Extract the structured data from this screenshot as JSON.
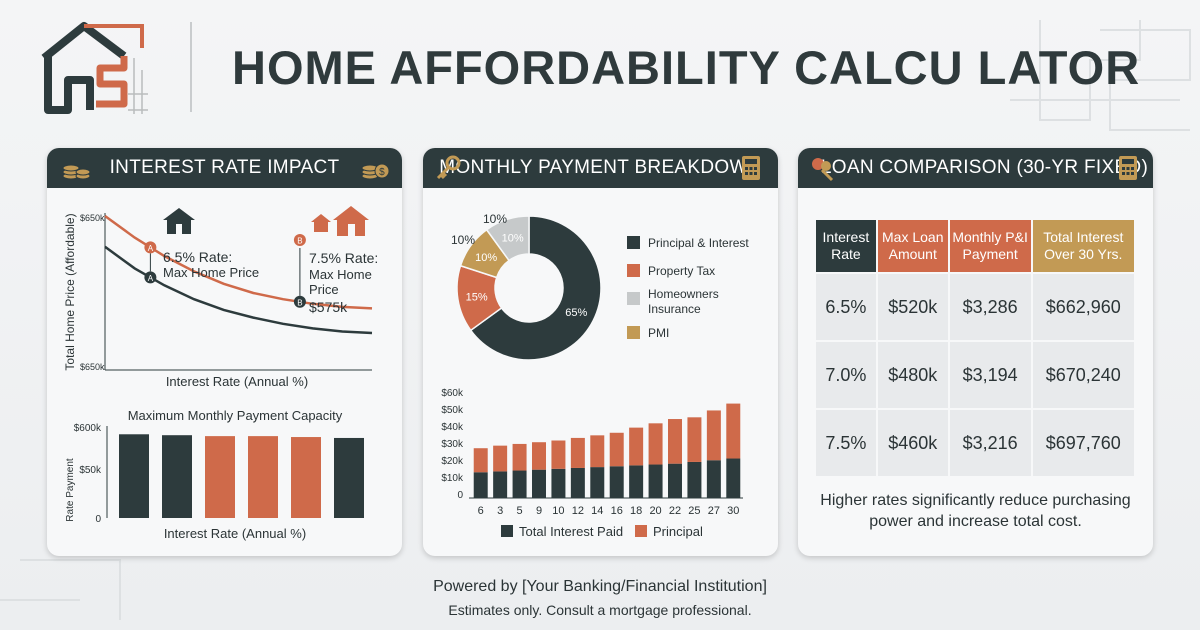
{
  "header": {
    "title": "HOME AFFORDABILITY CALCU LATOR"
  },
  "colors": {
    "dark": "#2d3b3d",
    "orange": "#cf6a4a",
    "gray": "#bfc2c3",
    "gold": "#c29a55",
    "bar_gray": "#c6c9ca"
  },
  "icons": {
    "logo": "hs-house-logo",
    "coins": "coins-icon",
    "coins_dollar": "coins-dollar-icon",
    "key": "key-icon",
    "calculator": "calculator-icon",
    "keys": "keys-icon",
    "house": "house-icon"
  },
  "card_rate": {
    "title": "INTEREST RATE IMPACT",
    "ylabel": "Total Home Price (Affordable)",
    "ytick_top": "$650k",
    "ytick_bottom": "$650k",
    "xlabel": "Interest Rate (Annual %)",
    "marker_a": "A",
    "marker_b": "B",
    "annot_a": [
      "6.5% Rate:",
      "Max Home Price"
    ],
    "annot_b": [
      "7.5% Rate:",
      "Max Home",
      "Price",
      "$575k"
    ],
    "bar_title": "Maximum Monthly Payment Capacity",
    "bar_ylabel": "Rate Payment",
    "bar_ticks": [
      "$600k",
      "$50k",
      "0"
    ],
    "bar_xlabel": "Interest Rate (Annual %)"
  },
  "card_payment": {
    "title": "MONTHLY PAYMENT BREAKDOWN",
    "legend": [
      "Principal & Interest",
      "Property Tax",
      "Homeowners Insurance",
      "PMI"
    ],
    "outer_labels": [
      "10%",
      "10%"
    ],
    "bar_ticks": [
      "$60k",
      "$50k",
      "$40k",
      "$30k",
      "$20k",
      "$10k",
      "0"
    ],
    "bar_legend": [
      "Total Interest Paid",
      "Principal"
    ]
  },
  "card_loan": {
    "title": "LOAN COMPARISON (30-YR FIXED)",
    "columns": [
      {
        "label": "Interest Rate",
        "color": "#2d3b3d"
      },
      {
        "label": "Max Loan Amount",
        "color": "#cf6a4a"
      },
      {
        "label": "Monthly P&I Payment",
        "color": "#cf6a4a"
      },
      {
        "label": "Total Interest Over 30 Yrs.",
        "color": "#c29a55"
      }
    ],
    "rows": [
      [
        "6.5%",
        "$520k",
        "$3,286",
        "$662,960"
      ],
      [
        "7.0%",
        "$480k",
        "$3,194",
        "$670,240"
      ],
      [
        "7.5%",
        "$460k",
        "$3,216",
        "$697,760"
      ]
    ],
    "note": "Higher rates significantly reduce purchasing power and increase total cost."
  },
  "footer": {
    "powered": "Powered by [Your Banking/Financial Institution]",
    "disclaimer": "Estimates only. Consult a mortgage professional."
  },
  "chart_data": [
    {
      "type": "line",
      "title": "",
      "xlabel": "Interest Rate (Annual %)",
      "ylabel": "Total Home Price (Affordable)",
      "series": [
        {
          "color": "#cf6a4a",
          "values": [
            1.0,
            0.86,
            0.74,
            0.64,
            0.56,
            0.5,
            0.46,
            0.43,
            0.41,
            0.4
          ]
        },
        {
          "color": "#2d3b3d",
          "values": [
            0.8,
            0.66,
            0.55,
            0.46,
            0.39,
            0.34,
            0.3,
            0.27,
            0.25,
            0.24
          ]
        }
      ],
      "points": [
        {
          "label": "A",
          "series": 0,
          "x": 0.17
        },
        {
          "label": "A",
          "series": 1,
          "x": 0.17
        },
        {
          "label": "B",
          "series": 0,
          "x": 0.73
        }
      ]
    },
    {
      "type": "bar",
      "title": "Maximum Monthly Payment Capacity",
      "xlabel": "Interest Rate (Annual %)",
      "ylabel": "Rate Payment",
      "values": [
        91,
        90,
        89,
        89,
        88,
        87
      ],
      "colors": [
        "#2d3b3d",
        "#2d3b3d",
        "#cf6a4a",
        "#cf6a4a",
        "#cf6a4a",
        "#2d3b3d"
      ]
    },
    {
      "type": "pie",
      "slices": [
        {
          "label": "Principal & Interest",
          "value": 65,
          "text": "65%",
          "color": "#2d3b3d"
        },
        {
          "label": "Property Tax",
          "value": 15,
          "text": "15%",
          "color": "#cf6a4a"
        },
        {
          "label": "PMI",
          "value": 10,
          "text": "10%",
          "color": "#c29a55"
        },
        {
          "label": "Homeowners Insurance",
          "value": 10,
          "text": "10%",
          "color": "#c6c9ca"
        }
      ]
    },
    {
      "type": "bar",
      "stacked": true,
      "categories": [
        "6",
        "3",
        "5",
        "9",
        "10",
        "12",
        "14",
        "16",
        "18",
        "20",
        "22",
        "25",
        "27",
        "30"
      ],
      "ylim": [
        0,
        60000
      ],
      "series": [
        {
          "name": "Total Interest Paid",
          "color": "#2d3b3d",
          "values": [
            15000,
            15500,
            16000,
            16500,
            17000,
            17500,
            18000,
            18500,
            19000,
            19500,
            20000,
            21000,
            22000,
            23000
          ]
        },
        {
          "name": "Principal",
          "color": "#cf6a4a",
          "values": [
            14000,
            15000,
            15500,
            16000,
            16500,
            17500,
            18500,
            19500,
            22000,
            24000,
            26000,
            26000,
            29000,
            32000
          ]
        }
      ]
    }
  ]
}
